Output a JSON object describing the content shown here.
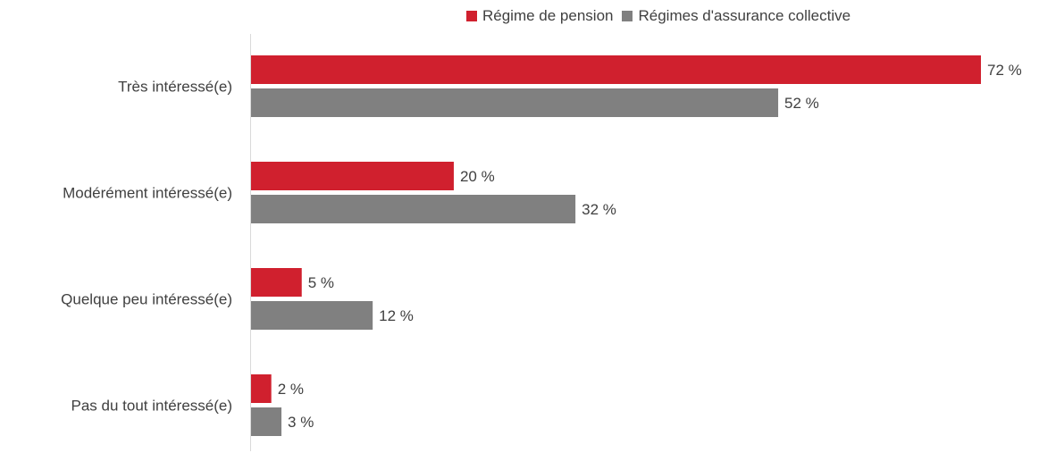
{
  "chart_data": {
    "type": "bar",
    "orientation": "horizontal",
    "categories": [
      "Très intéressé(e)",
      "Modérément intéressé(e)",
      "Quelque peu intéressé(e)",
      "Pas du tout intéressé(e)"
    ],
    "series": [
      {
        "name": "Régime de pension",
        "values": [
          72,
          20,
          5,
          2
        ],
        "color": "#d0202e"
      },
      {
        "name": "Régimes d'assurance collective",
        "values": [
          52,
          32,
          12,
          3
        ],
        "color": "#808080"
      }
    ],
    "value_suffix": " %",
    "xlim": [
      0,
      72
    ],
    "legend_position": "top-right",
    "grid": false
  },
  "legend": {
    "items": [
      {
        "label": "Régime de pension",
        "color": "#d0202e"
      },
      {
        "label": "Régimes d'assurance collective",
        "color": "#808080"
      }
    ]
  }
}
